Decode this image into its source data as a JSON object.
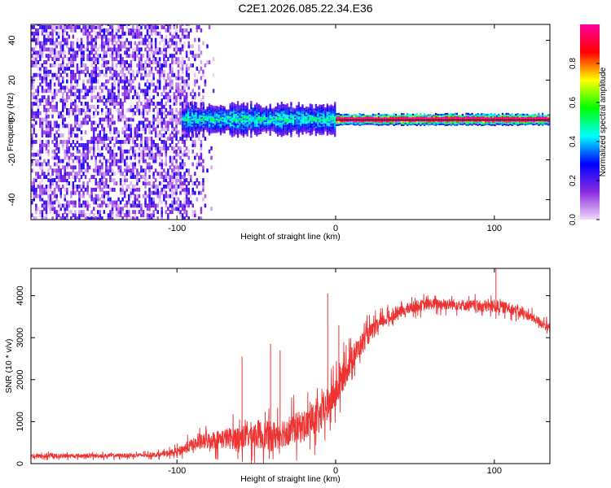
{
  "title": "C2E1.2026.085.22.34.E36",
  "chart_data": [
    {
      "type": "heatmap",
      "title": "C2E1.2026.085.22.34.E36",
      "xlabel": "Height of straight line (km)",
      "ylabel": "Frequency (Hz)",
      "xlim": [
        -192,
        135
      ],
      "ylim": [
        -50,
        48
      ],
      "x_ticks": [
        -100,
        0,
        100
      ],
      "y_ticks": [
        -40,
        -20,
        0,
        20,
        40
      ],
      "colorbar": {
        "label": "Normalized spectral amplitude",
        "range": [
          0.0,
          1.0
        ],
        "ticks": [
          0.0,
          0.2,
          0.4,
          0.6,
          0.8
        ],
        "tick_labels": [
          "0.0",
          "0.2",
          "0.4",
          "0.6",
          "0.8"
        ],
        "colors": [
          "#f0d8f8",
          "#8a2be2",
          "#0000ff",
          "#00ffff",
          "#00ff00",
          "#ffff00",
          "#ff0000",
          "#ff00a0"
        ]
      },
      "description_regions": [
        {
          "x_range": [
            -192,
            -97
          ],
          "freq_range": [
            -50,
            48
          ],
          "amplitude": 0.15,
          "pattern": "broadband noise"
        },
        {
          "x_range": [
            -97,
            0
          ],
          "freq_range": [
            -8,
            8
          ],
          "amplitude": 0.45,
          "pattern": "narrow band near 0 Hz"
        },
        {
          "x_range": [
            0,
            135
          ],
          "freq_range": [
            -3,
            3
          ],
          "amplitude": 0.9,
          "pattern": "strong line at 0 Hz"
        }
      ]
    },
    {
      "type": "line",
      "xlabel": "Height of straight line (km)",
      "ylabel": "SNR (10 * v/v)",
      "xlim": [
        -192,
        135
      ],
      "ylim": [
        0,
        4650
      ],
      "x_ticks": [
        -100,
        0,
        100
      ],
      "y_ticks": [
        0,
        1000,
        2000,
        3000,
        4000
      ],
      "color": "#ee3333",
      "series": [
        {
          "name": "SNR",
          "x": [
            -192,
            -180,
            -160,
            -140,
            -120,
            -110,
            -100,
            -90,
            -80,
            -70,
            -60,
            -50,
            -40,
            -30,
            -20,
            -10,
            0,
            10,
            20,
            30,
            40,
            50,
            60,
            70,
            80,
            90,
            100,
            110,
            120,
            130,
            135
          ],
          "values": [
            180,
            180,
            185,
            190,
            200,
            220,
            280,
            450,
            550,
            600,
            620,
            700,
            650,
            800,
            900,
            1100,
            1700,
            2500,
            3050,
            3400,
            3600,
            3750,
            3800,
            3800,
            3780,
            3750,
            3750,
            3700,
            3550,
            3350,
            3200
          ],
          "spread": [
            120,
            120,
            110,
            110,
            110,
            130,
            200,
            350,
            450,
            550,
            650,
            750,
            800,
            800,
            850,
            900,
            900,
            700,
            500,
            350,
            300,
            300,
            300,
            300,
            300,
            300,
            350,
            300,
            250,
            250,
            250
          ]
        }
      ],
      "peaks": [
        {
          "x": -59,
          "y": 2550
        },
        {
          "x": -41,
          "y": 2850
        },
        {
          "x": -35,
          "y": 2700
        },
        {
          "x": -5,
          "y": 4050
        },
        {
          "x": 2,
          "y": 3300
        },
        {
          "x": 101,
          "y": 4650
        }
      ]
    }
  ]
}
